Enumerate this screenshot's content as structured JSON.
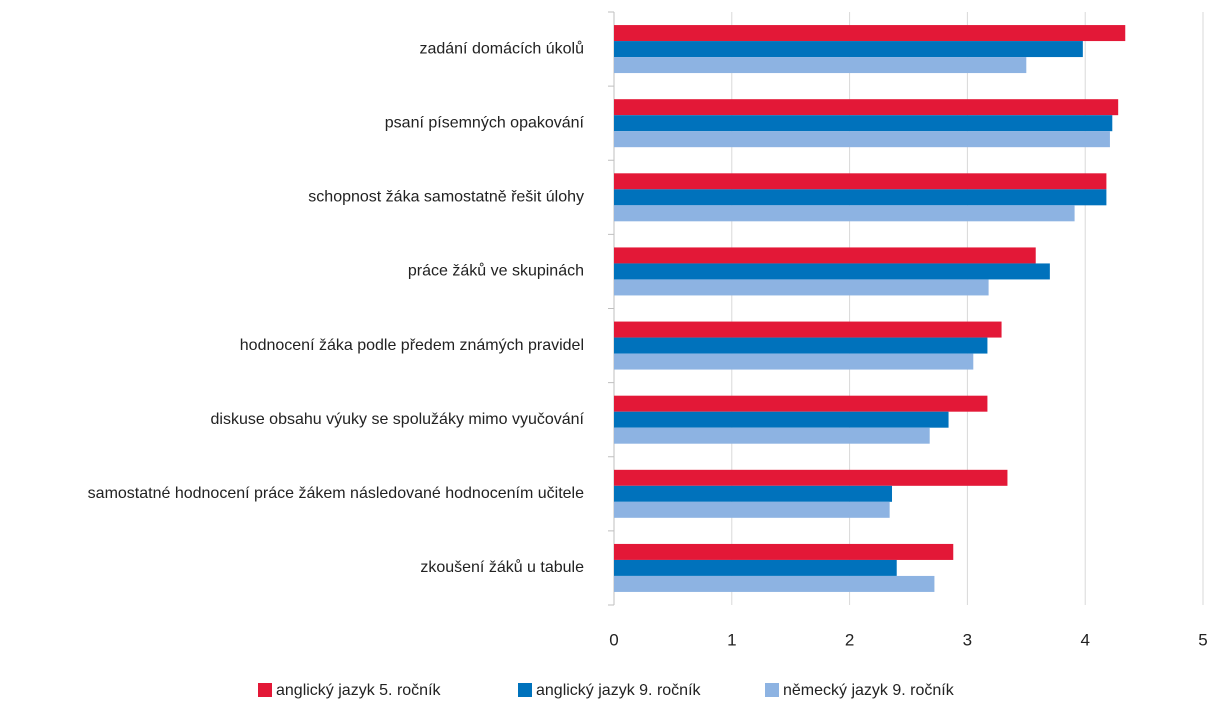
{
  "chart_data": {
    "type": "barh",
    "categories": [
      "zadání domácích úkolů",
      "psaní písemných opakování",
      "schopnost žáka samostatně řešit úlohy",
      "práce žáků ve skupinách",
      "hodnocení žáka podle předem známých pravidel",
      "diskuse obsahu výuky se spolužáky mimo vyučování",
      "samostatné hodnocení práce žákem následované hodnocením učitele",
      "zkoušení žáků u tabule"
    ],
    "series": [
      {
        "name": "anglický jazyk 5. ročník",
        "color": "#e31837",
        "values": [
          4.34,
          4.28,
          4.18,
          3.58,
          3.29,
          3.17,
          3.34,
          2.88
        ]
      },
      {
        "name": "anglický jazyk 9. ročník",
        "color": "#0072bc",
        "values": [
          3.98,
          4.23,
          4.18,
          3.7,
          3.17,
          2.84,
          2.36,
          2.4
        ]
      },
      {
        "name": "německý jazyk 9. ročník",
        "color": "#8db3e2",
        "values": [
          3.5,
          4.21,
          3.91,
          3.18,
          3.05,
          2.68,
          2.34,
          2.72
        ]
      }
    ],
    "xlim": [
      0,
      5
    ],
    "xticks": [
      0,
      1,
      2,
      3,
      4,
      5
    ],
    "grid": true,
    "legend": "bottom"
  }
}
